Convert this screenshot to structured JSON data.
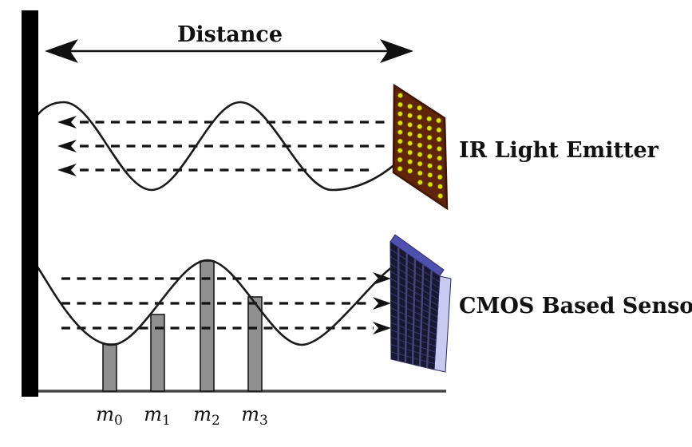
{
  "diagram": {
    "distance_label": "Distance",
    "emitter_label": "IR Light Emitter",
    "sensor_label": "CMOS Based Sensor",
    "samples": [
      {
        "base": "m",
        "sub": "0"
      },
      {
        "base": "m",
        "sub": "1"
      },
      {
        "base": "m",
        "sub": "2"
      },
      {
        "base": "m",
        "sub": "3"
      }
    ],
    "colors": {
      "wall": "#000000",
      "baseline": "#464646",
      "wave": "#1a1a1a",
      "dashed": "#111111",
      "bar_fill": "#8f8f8f",
      "bar_stroke": "#1a1a1a",
      "emitter_panel": "#5f2409",
      "emitter_border": "#3f1503",
      "emitter_dot": "#e0e000",
      "emitter_dot_edge": "#6f6f00",
      "sensor_front": "#181830",
      "sensor_stripe": "#45457f",
      "sensor_top": "#5050ae",
      "sensor_side": "#cacaf0",
      "sensor_edge": "#2a2a66",
      "text": "#111111"
    }
  }
}
